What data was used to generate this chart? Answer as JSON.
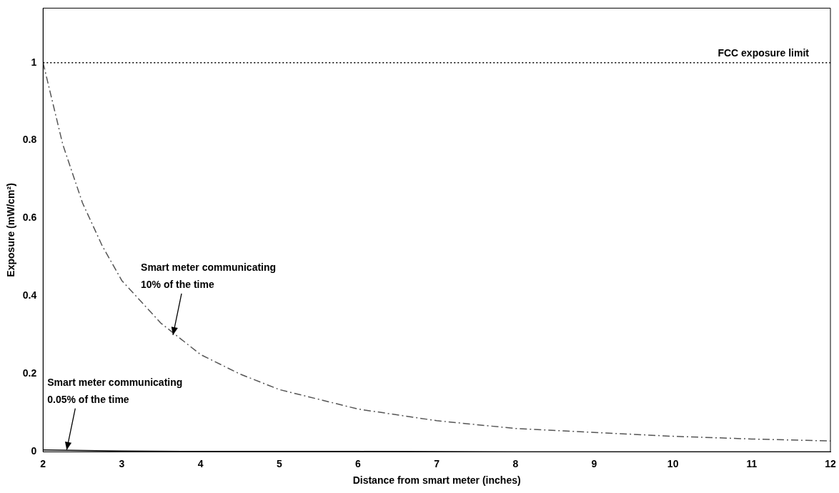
{
  "chart_data": {
    "type": "line",
    "xlabel": "Distance from smart meter (inches)",
    "ylabel": "Exposure (mW/cm²)",
    "xlim": [
      2,
      12
    ],
    "xticks": [
      2,
      3,
      4,
      5,
      6,
      7,
      8,
      9,
      10,
      11,
      12
    ],
    "ylim": [
      0,
      1.14
    ],
    "yticks": [
      0,
      0.2,
      0.4,
      0.6,
      0.8,
      1
    ],
    "grid": false,
    "legend": false,
    "marker": "none",
    "series": [
      {
        "color": "#555555",
        "line_style": "dashed",
        "x": [
          2,
          2.25,
          2.5,
          2.75,
          3,
          3.5,
          4,
          4.5,
          5,
          6,
          7,
          8,
          9,
          10,
          11,
          12
        ],
        "values": [
          1.0,
          0.79,
          0.64,
          0.53,
          0.44,
          0.33,
          0.25,
          0.2,
          0.16,
          0.11,
          0.08,
          0.06,
          0.05,
          0.04,
          0.033,
          0.028
        ]
      },
      {
        "color": "#000000",
        "line_style": "solid",
        "x": [
          2,
          3,
          4,
          6,
          8,
          12
        ],
        "values": [
          0.005,
          0.002,
          0.001,
          0.001,
          0.0,
          0.0
        ]
      }
    ],
    "ref_lines": [
      {
        "axis": "y",
        "value": 1,
        "label": "FCC exposure limit",
        "color": "#000000",
        "line_style": "dotted"
      }
    ],
    "annotations": [
      {
        "text": "Smart meter communicating\n10% of the time",
        "x": 3.65,
        "y": 0.3
      },
      {
        "text": "Smart meter communicating\n0.05% of the time",
        "x": 2.3,
        "y": 0.005
      }
    ]
  }
}
